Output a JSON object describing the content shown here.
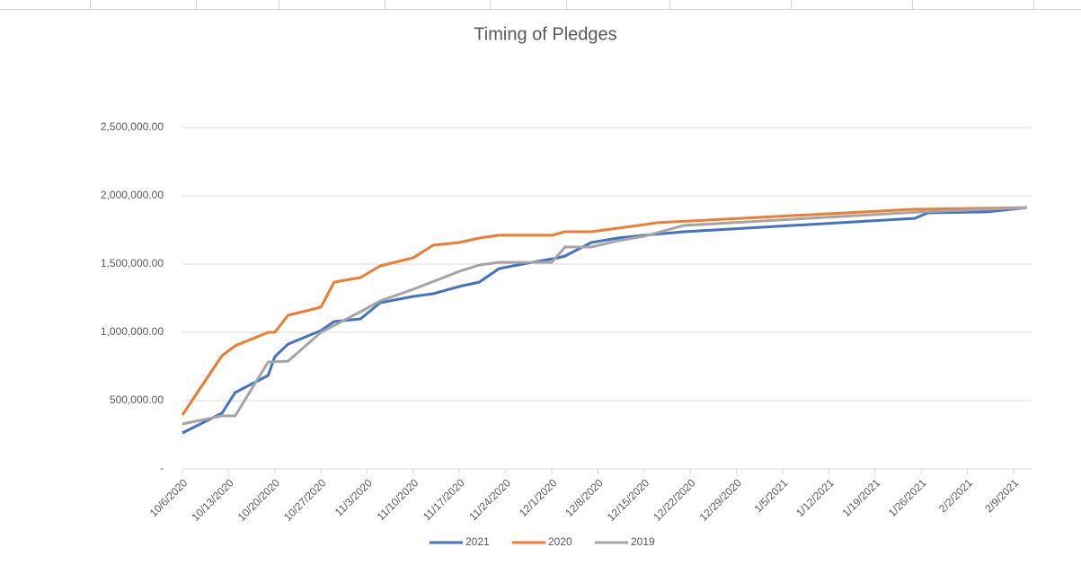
{
  "chart_data": {
    "type": "line",
    "title": "Timing of Pledges",
    "xlim": [
      "10/6/2020",
      "2/12/2021"
    ],
    "xticks": [
      "10/6/2020",
      "10/13/2020",
      "10/20/2020",
      "10/27/2020",
      "11/3/2020",
      "11/10/2020",
      "11/17/2020",
      "11/24/2020",
      "12/1/2020",
      "12/8/2020",
      "12/15/2020",
      "12/22/2020",
      "12/29/2020",
      "1/5/2021",
      "1/12/2021",
      "1/19/2021",
      "1/26/2021",
      "2/2/2021",
      "2/9/2021"
    ],
    "ylim": [
      0,
      2500000
    ],
    "yticks": [
      {
        "value": 0,
        "label": "-"
      },
      {
        "value": 500000,
        "label": "500,000.00"
      },
      {
        "value": 1000000,
        "label": "1,000,000.00"
      },
      {
        "value": 1500000,
        "label": "1,500,000.00"
      },
      {
        "value": 2000000,
        "label": "2,000,000.00"
      },
      {
        "value": 2500000,
        "label": "2,500,000.00"
      }
    ],
    "grid": true,
    "legend": "bottom",
    "series": [
      {
        "name": "2021",
        "color": "#4472c4",
        "x": [
          "10/6/2020",
          "10/12/2020",
          "10/14/2020",
          "10/19/2020",
          "10/20/2020",
          "10/22/2020",
          "10/27/2020",
          "10/29/2020",
          "11/2/2020",
          "11/5/2020",
          "11/10/2020",
          "11/13/2020",
          "11/17/2020",
          "11/20/2020",
          "11/23/2020",
          "11/28/2020",
          "12/2/2020",
          "12/3/2020",
          "12/7/2020",
          "12/11/2020",
          "12/15/2020",
          "12/21/2020",
          "1/25/2021",
          "1/27/2021",
          "2/5/2021",
          "2/11/2021"
        ],
        "values": [
          263000,
          408000,
          559000,
          684000,
          822000,
          914000,
          1013000,
          1079000,
          1099000,
          1217000,
          1263000,
          1283000,
          1336000,
          1368000,
          1467000,
          1513000,
          1546000,
          1559000,
          1658000,
          1691000,
          1711000,
          1737000,
          1835000,
          1875000,
          1882000,
          1914000
        ]
      },
      {
        "name": "2020",
        "color": "#ed7d31",
        "x": [
          "10/6/2020",
          "10/12/2020",
          "10/14/2020",
          "10/19/2020",
          "10/20/2020",
          "10/22/2020",
          "10/27/2020",
          "10/29/2020",
          "11/2/2020",
          "11/5/2020",
          "11/10/2020",
          "11/13/2020",
          "11/17/2020",
          "11/20/2020",
          "11/23/2020",
          "12/1/2020",
          "12/3/2020",
          "12/7/2020",
          "12/15/2020",
          "12/17/2020",
          "1/25/2021",
          "2/11/2021"
        ],
        "values": [
          395000,
          829000,
          901000,
          1000000,
          1000000,
          1125000,
          1184000,
          1368000,
          1401000,
          1487000,
          1546000,
          1638000,
          1658000,
          1691000,
          1711000,
          1711000,
          1737000,
          1737000,
          1789000,
          1803000,
          1901000,
          1914000
        ]
      },
      {
        "name": "2019",
        "color": "#a5a5a5",
        "x": [
          "10/6/2020",
          "10/12/2020",
          "10/14/2020",
          "10/19/2020",
          "10/22/2020",
          "10/27/2020",
          "11/2/2020",
          "11/5/2020",
          "11/10/2020",
          "11/17/2020",
          "11/20/2020",
          "11/23/2020",
          "12/1/2020",
          "12/3/2020",
          "12/7/2020",
          "12/11/2020",
          "12/15/2020",
          "12/21/2020",
          "1/26/2021",
          "2/5/2021",
          "2/11/2021"
        ],
        "values": [
          329000,
          388000,
          388000,
          783000,
          789000,
          1000000,
          1151000,
          1230000,
          1316000,
          1447000,
          1493000,
          1513000,
          1513000,
          1625000,
          1625000,
          1671000,
          1704000,
          1783000,
          1882000,
          1901000,
          1914000
        ]
      }
    ]
  }
}
